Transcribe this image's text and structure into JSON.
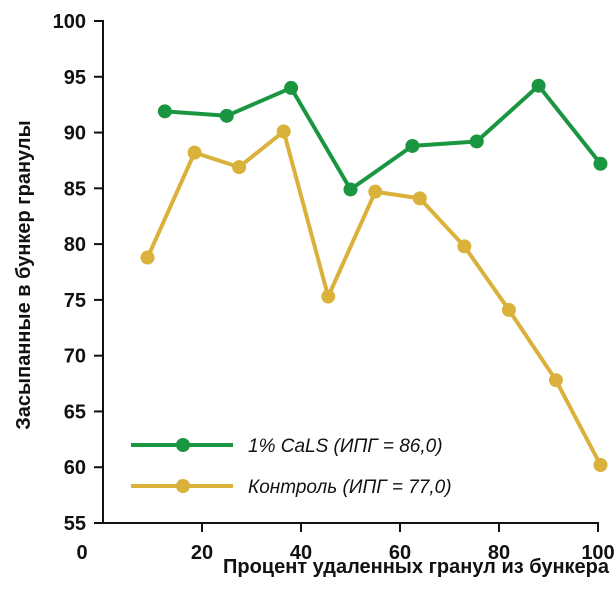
{
  "chart_data": {
    "type": "line",
    "xlabel": "Процент удаленных гранул из бункера",
    "ylabel": "Засыпанные в бункер гранулы",
    "xlim": [
      0,
      100
    ],
    "ylim": [
      55,
      100
    ],
    "x_ticks": [
      "0",
      "20",
      "40",
      "60",
      "80",
      "100"
    ],
    "y_ticks": [
      "55",
      "60",
      "65",
      "70",
      "75",
      "80",
      "85",
      "90",
      "95",
      "100"
    ],
    "grid": false,
    "legend_position": "bottom-center",
    "series": [
      {
        "name": "1% CaLS (ИПГ = 86,0)",
        "color": "#1a9641",
        "x": [
          12.5,
          25,
          38,
          50,
          62.5,
          75.5,
          88,
          100.5
        ],
        "y": [
          91.9,
          91.5,
          94.0,
          84.9,
          88.8,
          89.2,
          94.2,
          87.2
        ]
      },
      {
        "name": "Контроль (ИПГ = 77,0)",
        "color": "#d9b13b",
        "x": [
          9,
          18.5,
          27.5,
          36.5,
          45.5,
          55,
          64,
          73,
          82,
          91.5,
          100.5
        ],
        "y": [
          78.8,
          88.2,
          86.9,
          90.1,
          75.3,
          84.7,
          84.1,
          79.8,
          74.1,
          67.8,
          60.2
        ]
      }
    ]
  }
}
